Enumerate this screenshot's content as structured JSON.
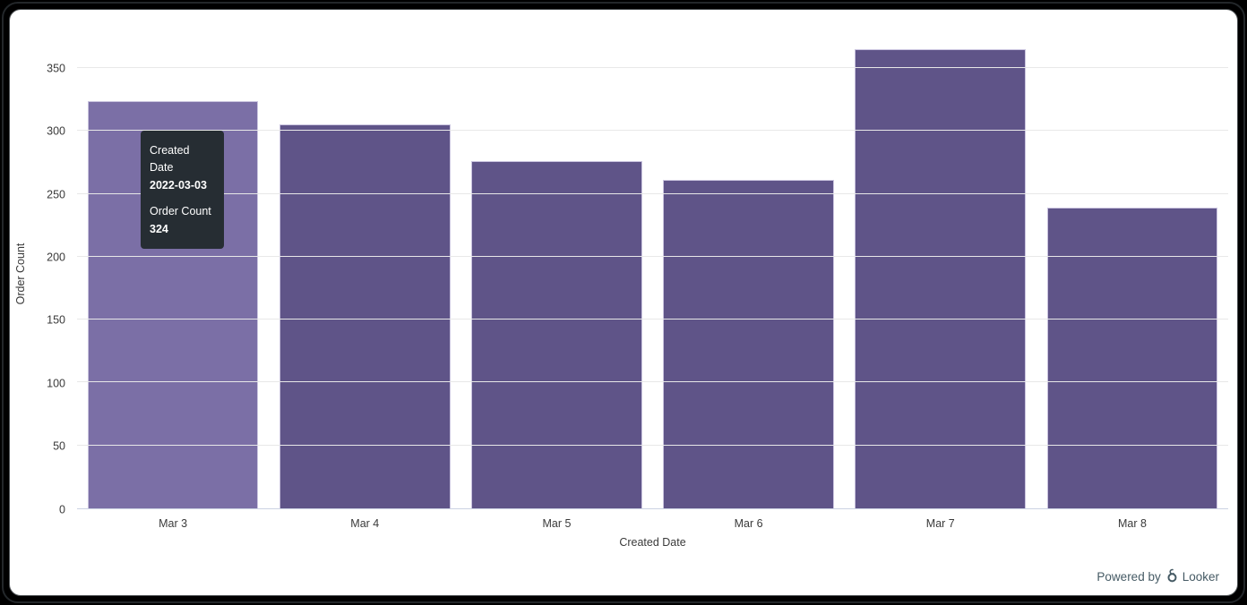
{
  "chart_data": {
    "type": "bar",
    "categories": [
      "Mar 3",
      "Mar 4",
      "Mar 5",
      "Mar 6",
      "Mar 7",
      "Mar 8"
    ],
    "values": [
      324,
      305,
      276,
      261,
      365,
      239
    ],
    "title": "",
    "xlabel": "Created Date",
    "ylabel": "Order Count",
    "ylim": [
      0,
      375
    ],
    "yticks": [
      0,
      50,
      100,
      150,
      200,
      250,
      300,
      350
    ],
    "grid": true,
    "legend": "none",
    "bar_color": "#5f5488",
    "bar_hover_color": "#7b6fa6",
    "bar_border_color": "#c9c3de",
    "gridline_color": "#e8e8e8",
    "hover_index": 0
  },
  "tooltip": {
    "dimension_label": "Created Date",
    "dimension_value": "2022-03-03",
    "measure_label": "Order Count",
    "measure_value": "324",
    "bg_color": "#262d33",
    "text_color": "#ffffff"
  },
  "footer": {
    "powered_by_text": "Powered by",
    "brand_text": "Looker",
    "text_color": "#455a64"
  }
}
